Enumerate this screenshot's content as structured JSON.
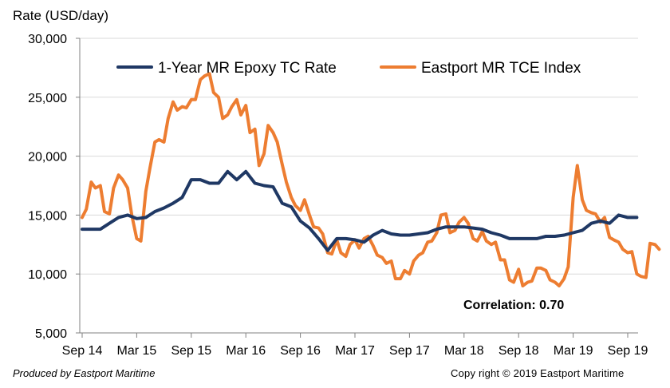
{
  "chart_data": {
    "type": "line",
    "ylabel": "Rate (USD/day)",
    "ylim": [
      5000,
      30000
    ],
    "yticks": [
      5000,
      10000,
      15000,
      20000,
      25000,
      30000
    ],
    "ytick_labels": [
      "5,000",
      "10,000",
      "15,000",
      "20,000",
      "25,000",
      "30,000"
    ],
    "xlim": [
      "2014-09",
      "2019-10"
    ],
    "x_tick_labels": [
      "Sep 14",
      "Mar 15",
      "Sep 15",
      "Mar 16",
      "Sep 16",
      "Mar 17",
      "Sep 17",
      "Mar 18",
      "Sep 18",
      "Mar 19",
      "Sep 19"
    ],
    "grid": "horizontal",
    "legend_position": "top",
    "annotation": "Correlation: 0.70",
    "series": [
      {
        "name": "1-Year MR Epoxy TC Rate",
        "color": "#1f3864",
        "points": [
          [
            "2014-09-01",
            13800
          ],
          [
            "2014-10-01",
            13800
          ],
          [
            "2014-11-01",
            13800
          ],
          [
            "2014-12-01",
            14300
          ],
          [
            "2015-01-01",
            14800
          ],
          [
            "2015-02-01",
            15000
          ],
          [
            "2015-03-01",
            14700
          ],
          [
            "2015-04-01",
            14800
          ],
          [
            "2015-05-01",
            15300
          ],
          [
            "2015-06-01",
            15600
          ],
          [
            "2015-07-01",
            16000
          ],
          [
            "2015-08-01",
            16500
          ],
          [
            "2015-09-01",
            18000
          ],
          [
            "2015-10-01",
            18000
          ],
          [
            "2015-11-01",
            17700
          ],
          [
            "2015-12-01",
            17700
          ],
          [
            "2016-01-01",
            18700
          ],
          [
            "2016-02-01",
            18000
          ],
          [
            "2016-03-01",
            18700
          ],
          [
            "2016-04-01",
            17700
          ],
          [
            "2016-05-01",
            17500
          ],
          [
            "2016-06-01",
            17400
          ],
          [
            "2016-07-01",
            16000
          ],
          [
            "2016-08-01",
            15700
          ],
          [
            "2016-09-01",
            14500
          ],
          [
            "2016-10-01",
            13900
          ],
          [
            "2016-11-01",
            13000
          ],
          [
            "2016-12-01",
            12000
          ],
          [
            "2017-01-01",
            13000
          ],
          [
            "2017-02-01",
            13000
          ],
          [
            "2017-03-01",
            12900
          ],
          [
            "2017-04-01",
            12700
          ],
          [
            "2017-05-01",
            13300
          ],
          [
            "2017-06-01",
            13700
          ],
          [
            "2017-07-01",
            13400
          ],
          [
            "2017-08-01",
            13300
          ],
          [
            "2017-09-01",
            13300
          ],
          [
            "2017-10-01",
            13400
          ],
          [
            "2017-11-01",
            13500
          ],
          [
            "2017-12-01",
            13800
          ],
          [
            "2018-01-01",
            14000
          ],
          [
            "2018-02-01",
            14000
          ],
          [
            "2018-03-01",
            14000
          ],
          [
            "2018-04-01",
            13900
          ],
          [
            "2018-05-01",
            13800
          ],
          [
            "2018-06-01",
            13500
          ],
          [
            "2018-07-01",
            13300
          ],
          [
            "2018-08-01",
            13000
          ],
          [
            "2018-09-01",
            13000
          ],
          [
            "2018-10-01",
            13000
          ],
          [
            "2018-11-01",
            13000
          ],
          [
            "2018-12-01",
            13200
          ],
          [
            "2019-01-01",
            13200
          ],
          [
            "2019-02-01",
            13300
          ],
          [
            "2019-03-01",
            13500
          ],
          [
            "2019-04-01",
            13700
          ],
          [
            "2019-05-01",
            14300
          ],
          [
            "2019-06-01",
            14500
          ],
          [
            "2019-07-01",
            14300
          ],
          [
            "2019-08-01",
            15000
          ],
          [
            "2019-09-01",
            14800
          ],
          [
            "2019-10-01",
            14800
          ]
        ]
      },
      {
        "name": "Eastport MR TCE Index",
        "color": "#ed7d31",
        "points": [
          [
            "2014-09-01",
            14800
          ],
          [
            "2014-09-15",
            15500
          ],
          [
            "2014-10-01",
            17800
          ],
          [
            "2014-10-15",
            17300
          ],
          [
            "2014-11-01",
            17500
          ],
          [
            "2014-11-15",
            15300
          ],
          [
            "2014-12-01",
            15100
          ],
          [
            "2014-12-15",
            17300
          ],
          [
            "2015-01-01",
            18400
          ],
          [
            "2015-01-15",
            18000
          ],
          [
            "2015-02-01",
            17300
          ],
          [
            "2015-02-15",
            15000
          ],
          [
            "2015-03-01",
            13000
          ],
          [
            "2015-03-15",
            12800
          ],
          [
            "2015-04-01",
            17000
          ],
          [
            "2015-04-15",
            19000
          ],
          [
            "2015-05-01",
            21200
          ],
          [
            "2015-05-15",
            21400
          ],
          [
            "2015-06-01",
            21200
          ],
          [
            "2015-06-15",
            23200
          ],
          [
            "2015-07-01",
            24600
          ],
          [
            "2015-07-15",
            23900
          ],
          [
            "2015-08-01",
            24200
          ],
          [
            "2015-08-15",
            24100
          ],
          [
            "2015-09-01",
            24800
          ],
          [
            "2015-09-15",
            24800
          ],
          [
            "2015-10-01",
            26500
          ],
          [
            "2015-10-15",
            26800
          ],
          [
            "2015-11-01",
            27000
          ],
          [
            "2015-11-15",
            25400
          ],
          [
            "2015-12-01",
            25000
          ],
          [
            "2015-12-15",
            23200
          ],
          [
            "2016-01-01",
            23500
          ],
          [
            "2016-01-15",
            24200
          ],
          [
            "2016-02-01",
            24800
          ],
          [
            "2016-02-15",
            23500
          ],
          [
            "2016-03-01",
            24300
          ],
          [
            "2016-03-15",
            22000
          ],
          [
            "2016-04-01",
            22300
          ],
          [
            "2016-04-15",
            19200
          ],
          [
            "2016-05-01",
            20200
          ],
          [
            "2016-05-15",
            22600
          ],
          [
            "2016-06-01",
            22000
          ],
          [
            "2016-06-15",
            21200
          ],
          [
            "2016-07-01",
            19300
          ],
          [
            "2016-07-15",
            17800
          ],
          [
            "2016-08-01",
            16500
          ],
          [
            "2016-08-15",
            15800
          ],
          [
            "2016-09-01",
            15400
          ],
          [
            "2016-09-15",
            16300
          ],
          [
            "2016-10-01",
            15000
          ],
          [
            "2016-10-15",
            14000
          ],
          [
            "2016-11-01",
            13900
          ],
          [
            "2016-11-15",
            13400
          ],
          [
            "2016-12-01",
            11800
          ],
          [
            "2016-12-15",
            11700
          ],
          [
            "2017-01-01",
            12900
          ],
          [
            "2017-01-15",
            11800
          ],
          [
            "2017-02-01",
            11500
          ],
          [
            "2017-02-15",
            12500
          ],
          [
            "2017-03-01",
            12900
          ],
          [
            "2017-03-15",
            12200
          ],
          [
            "2017-04-01",
            13000
          ],
          [
            "2017-04-15",
            13200
          ],
          [
            "2017-05-01",
            12400
          ],
          [
            "2017-05-15",
            11600
          ],
          [
            "2017-06-01",
            11400
          ],
          [
            "2017-06-15",
            10900
          ],
          [
            "2017-07-01",
            11100
          ],
          [
            "2017-07-15",
            9600
          ],
          [
            "2017-08-01",
            9600
          ],
          [
            "2017-08-15",
            10300
          ],
          [
            "2017-09-01",
            10000
          ],
          [
            "2017-09-15",
            11100
          ],
          [
            "2017-10-01",
            11600
          ],
          [
            "2017-10-15",
            11800
          ],
          [
            "2017-11-01",
            12700
          ],
          [
            "2017-11-15",
            12800
          ],
          [
            "2017-12-01",
            13500
          ],
          [
            "2017-12-15",
            15000
          ],
          [
            "2018-01-01",
            15100
          ],
          [
            "2018-01-15",
            13500
          ],
          [
            "2018-02-01",
            13700
          ],
          [
            "2018-02-15",
            14400
          ],
          [
            "2018-03-01",
            14800
          ],
          [
            "2018-03-15",
            14300
          ],
          [
            "2018-04-01",
            13000
          ],
          [
            "2018-04-15",
            12800
          ],
          [
            "2018-05-01",
            13600
          ],
          [
            "2018-05-15",
            12800
          ],
          [
            "2018-06-01",
            12500
          ],
          [
            "2018-06-15",
            12700
          ],
          [
            "2018-07-01",
            11200
          ],
          [
            "2018-07-15",
            11200
          ],
          [
            "2018-08-01",
            9500
          ],
          [
            "2018-08-15",
            9300
          ],
          [
            "2018-09-01",
            10400
          ],
          [
            "2018-09-15",
            9000
          ],
          [
            "2018-10-01",
            9300
          ],
          [
            "2018-10-15",
            9400
          ],
          [
            "2018-11-01",
            10500
          ],
          [
            "2018-11-15",
            10500
          ],
          [
            "2018-12-01",
            10300
          ],
          [
            "2018-12-15",
            9500
          ],
          [
            "2019-01-01",
            9300
          ],
          [
            "2019-01-15",
            9000
          ],
          [
            "2019-02-01",
            9600
          ],
          [
            "2019-02-15",
            10600
          ],
          [
            "2019-03-01",
            16500
          ],
          [
            "2019-03-15",
            19200
          ],
          [
            "2019-04-01",
            16300
          ],
          [
            "2019-04-15",
            15400
          ],
          [
            "2019-05-01",
            15200
          ],
          [
            "2019-05-15",
            15100
          ],
          [
            "2019-06-01",
            14400
          ],
          [
            "2019-06-15",
            14800
          ],
          [
            "2019-07-01",
            13100
          ],
          [
            "2019-07-15",
            12900
          ],
          [
            "2019-08-01",
            12700
          ],
          [
            "2019-08-15",
            12100
          ],
          [
            "2019-09-01",
            11800
          ],
          [
            "2019-09-15",
            11900
          ],
          [
            "2019-10-01",
            10000
          ],
          [
            "2019-10-15",
            9800
          ],
          [
            "2019-11-01",
            9700
          ],
          [
            "2019-11-15",
            12600
          ],
          [
            "2019-12-01",
            12500
          ],
          [
            "2019-12-15",
            12100
          ]
        ]
      }
    ]
  },
  "footer": {
    "left": "Produced by Eastport Maritime",
    "right": "Copy right © 2019 Eastport Maritime"
  }
}
